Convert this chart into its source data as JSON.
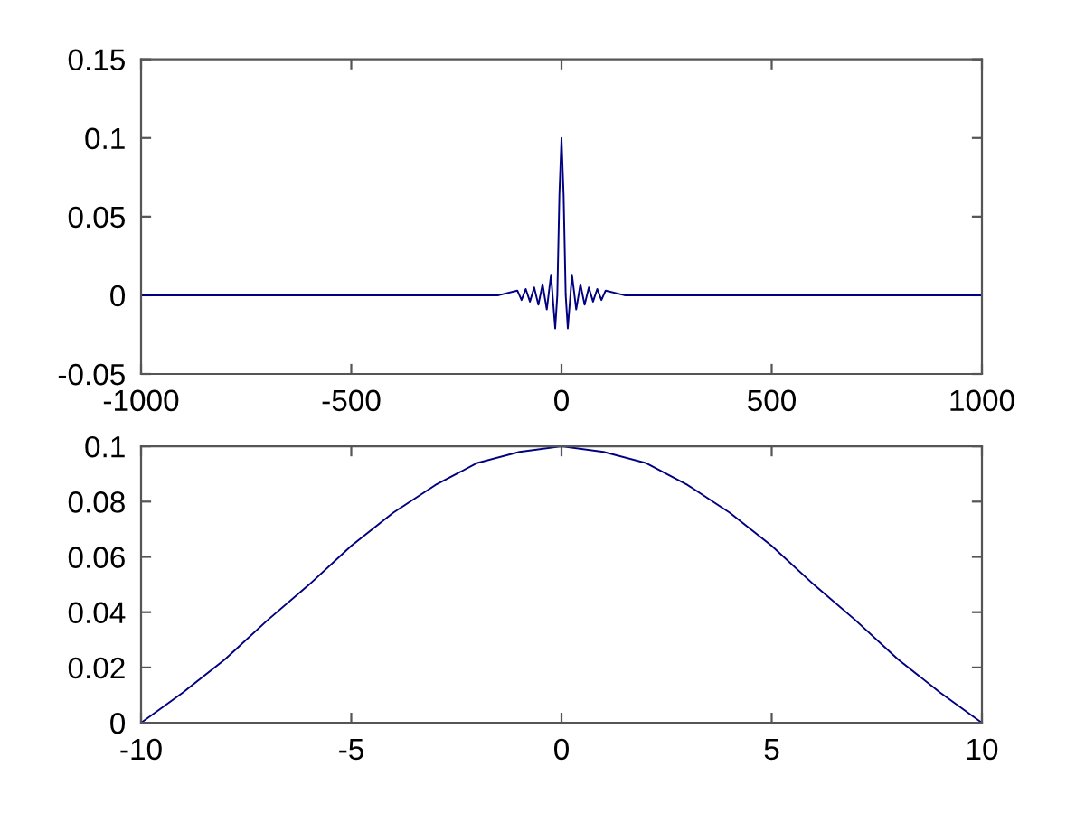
{
  "chart_data": [
    {
      "type": "line",
      "x": [
        -1000,
        -900,
        -800,
        -700,
        -600,
        -500,
        -400,
        -300,
        -200,
        -150,
        -105,
        -95,
        -85,
        -75,
        -65,
        -55,
        -45,
        -35,
        -25,
        -15,
        -10,
        -5,
        0,
        5,
        10,
        15,
        25,
        35,
        45,
        55,
        65,
        75,
        85,
        95,
        105,
        150,
        200,
        300,
        400,
        500,
        600,
        700,
        800,
        900,
        1000
      ],
      "series": [
        {
          "color": "#000080",
          "values": [
            0,
            0,
            0,
            0,
            0,
            0,
            0,
            0,
            0,
            0,
            0.003,
            -0.003,
            0.004,
            -0.004,
            0.005,
            -0.006,
            0.007,
            -0.009,
            0.013,
            -0.021,
            0,
            0.064,
            0.1,
            0.064,
            0,
            -0.021,
            0.013,
            -0.009,
            0.007,
            -0.006,
            0.005,
            -0.004,
            0.004,
            -0.003,
            0.003,
            0,
            0,
            0,
            0,
            0,
            0,
            0,
            0,
            0,
            0
          ]
        }
      ],
      "xlim": [
        -1000,
        1000
      ],
      "ylim": [
        -0.05,
        0.15
      ],
      "xticks": [
        -1000,
        -500,
        0,
        500,
        1000
      ],
      "yticks": [
        -0.05,
        0,
        0.05,
        0.1,
        0.15
      ],
      "grid": false
    },
    {
      "type": "line",
      "x": [
        -10,
        -9,
        -8,
        -7,
        -6,
        -5,
        -4,
        -3,
        -2,
        -1,
        0,
        1,
        2,
        3,
        4,
        5,
        6,
        7,
        8,
        9,
        10
      ],
      "series": [
        {
          "color": "#000080",
          "values": [
            0,
            0.011,
            0.023,
            0.037,
            0.05,
            0.064,
            0.076,
            0.086,
            0.094,
            0.098,
            0.1,
            0.098,
            0.094,
            0.086,
            0.076,
            0.064,
            0.05,
            0.037,
            0.023,
            0.011,
            0
          ]
        }
      ],
      "xlim": [
        -10,
        10
      ],
      "ylim": [
        0,
        0.1
      ],
      "xticks": [
        -10,
        -5,
        0,
        5,
        10
      ],
      "yticks": [
        0,
        0.02,
        0.04,
        0.06,
        0.08,
        0.1
      ],
      "grid": false
    }
  ]
}
